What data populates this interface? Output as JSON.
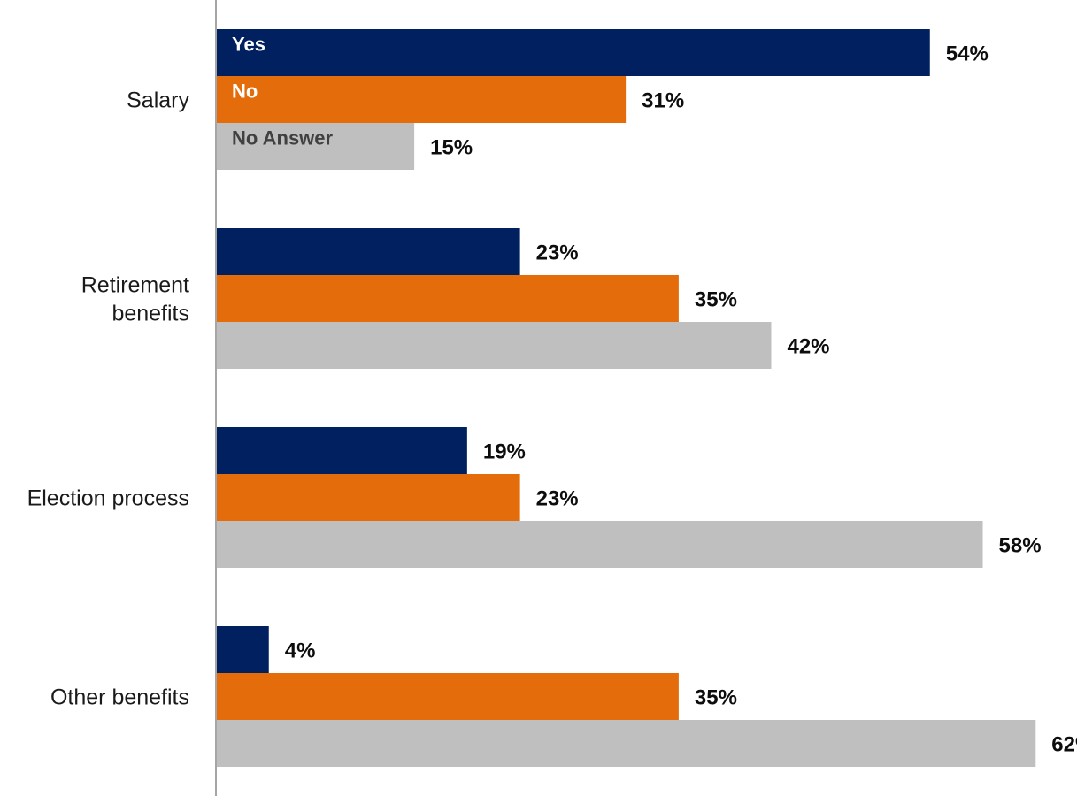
{
  "chart_data": {
    "type": "bar",
    "orientation": "horizontal",
    "categories": [
      "Salary",
      "Retirement benefits",
      "Election process",
      "Other benefits"
    ],
    "category_lines": [
      [
        "Salary"
      ],
      [
        "Retirement",
        "benefits"
      ],
      [
        "Election process"
      ],
      [
        "Other benefits"
      ]
    ],
    "series": [
      {
        "name": "Yes",
        "values": [
          54,
          23,
          19,
          4
        ],
        "color": "#002060",
        "label_color": "#ffffff"
      },
      {
        "name": "No",
        "values": [
          31,
          35,
          23,
          35
        ],
        "color": "#E46C0A",
        "label_color": "#ffffff"
      },
      {
        "name": "No Answer",
        "values": [
          15,
          42,
          58,
          62
        ],
        "color": "#BFBFBF",
        "label_color": "#404040"
      }
    ],
    "value_suffix": "%",
    "xlim": [
      0,
      62
    ],
    "grid": false,
    "legend": "inside-first-group",
    "title": "",
    "xlabel": "",
    "ylabel": ""
  }
}
